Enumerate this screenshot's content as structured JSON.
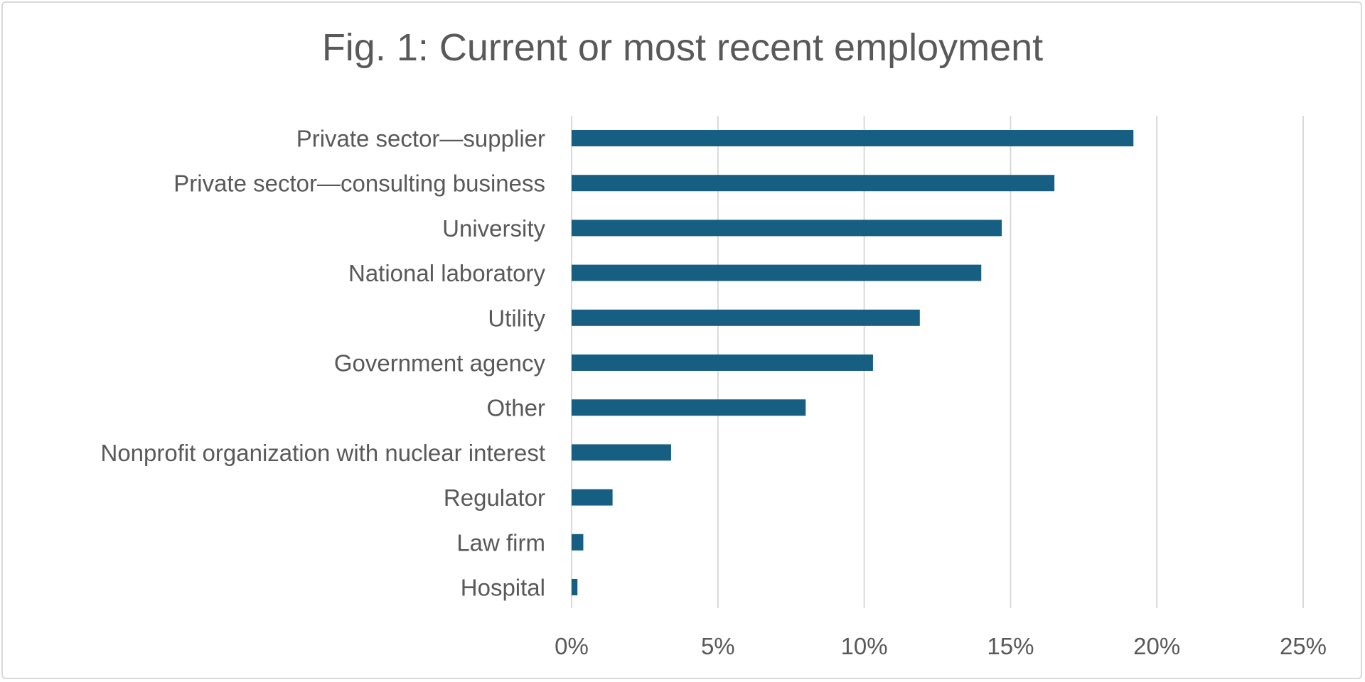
{
  "chart_data": {
    "type": "bar",
    "orientation": "horizontal",
    "title": "Fig. 1: Current or most recent employment",
    "categories": [
      "Private sector—supplier",
      "Private sector—consulting business",
      "University",
      "National laboratory",
      "Utility",
      "Government agency",
      "Other",
      "Nonprofit organization with nuclear interest",
      "Regulator",
      "Law firm",
      "Hospital"
    ],
    "values": [
      19.2,
      16.5,
      14.7,
      14.0,
      11.9,
      10.3,
      8.0,
      3.4,
      1.4,
      0.4,
      0.2
    ],
    "xlim": [
      0,
      25
    ],
    "xticks": [
      0,
      5,
      10,
      15,
      20,
      25
    ],
    "xtick_labels": [
      "0%",
      "5%",
      "10%",
      "15%",
      "20%",
      "25%"
    ],
    "xlabel": "",
    "ylabel": "",
    "grid": true,
    "bar_color": "#165f82",
    "grid_color": "#d9d9d9",
    "text_color": "#595959"
  }
}
